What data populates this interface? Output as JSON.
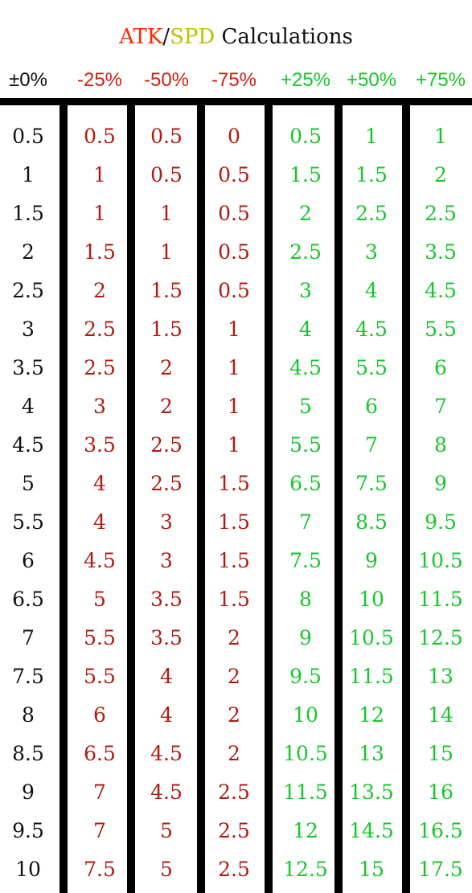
{
  "title": {
    "atk": "ATK",
    "slash": "/",
    "spd": "SPD",
    "rest": " Calculations"
  },
  "colors": {
    "atk": "#ff2a00",
    "spd": "#b9c400",
    "base": "#111111",
    "negative": "#b01a10",
    "positive": "#17c62b",
    "negative_header": "#cc2211"
  },
  "headers": [
    "±0%",
    "-25%",
    "-50%",
    "-75%",
    "+25%",
    "+50%",
    "+75%"
  ],
  "rows": [
    [
      "0.5",
      "0.5",
      "0.5",
      "0",
      "0.5",
      "1",
      "1"
    ],
    [
      "1",
      "1",
      "0.5",
      "0.5",
      "1.5",
      "1.5",
      "2"
    ],
    [
      "1.5",
      "1",
      "1",
      "0.5",
      "2",
      "2.5",
      "2.5"
    ],
    [
      "2",
      "1.5",
      "1",
      "0.5",
      "2.5",
      "3",
      "3.5"
    ],
    [
      "2.5",
      "2",
      "1.5",
      "0.5",
      "3",
      "4",
      "4.5"
    ],
    [
      "3",
      "2.5",
      "1.5",
      "1",
      "4",
      "4.5",
      "5.5"
    ],
    [
      "3.5",
      "2.5",
      "2",
      "1",
      "4.5",
      "5.5",
      "6"
    ],
    [
      "4",
      "3",
      "2",
      "1",
      "5",
      "6",
      "7"
    ],
    [
      "4.5",
      "3.5",
      "2.5",
      "1",
      "5.5",
      "7",
      "8"
    ],
    [
      "5",
      "4",
      "2.5",
      "1.5",
      "6.5",
      "7.5",
      "9"
    ],
    [
      "5.5",
      "4",
      "3",
      "1.5",
      "7",
      "8.5",
      "9.5"
    ],
    [
      "6",
      "4.5",
      "3",
      "1.5",
      "7.5",
      "9",
      "10.5"
    ],
    [
      "6.5",
      "5",
      "3.5",
      "1.5",
      "8",
      "10",
      "11.5"
    ],
    [
      "7",
      "5.5",
      "3.5",
      "2",
      "9",
      "10.5",
      "12.5"
    ],
    [
      "7.5",
      "5.5",
      "4",
      "2",
      "9.5",
      "11.5",
      "13"
    ],
    [
      "8",
      "6",
      "4",
      "2",
      "10",
      "12",
      "14"
    ],
    [
      "8.5",
      "6.5",
      "4.5",
      "2",
      "10.5",
      "13",
      "15"
    ],
    [
      "9",
      "7",
      "4.5",
      "2.5",
      "11.5",
      "13.5",
      "16"
    ],
    [
      "9.5",
      "7",
      "5",
      "2.5",
      "12",
      "14.5",
      "16.5"
    ],
    [
      "10",
      "7.5",
      "5",
      "2.5",
      "12.5",
      "15",
      "17.5"
    ]
  ]
}
